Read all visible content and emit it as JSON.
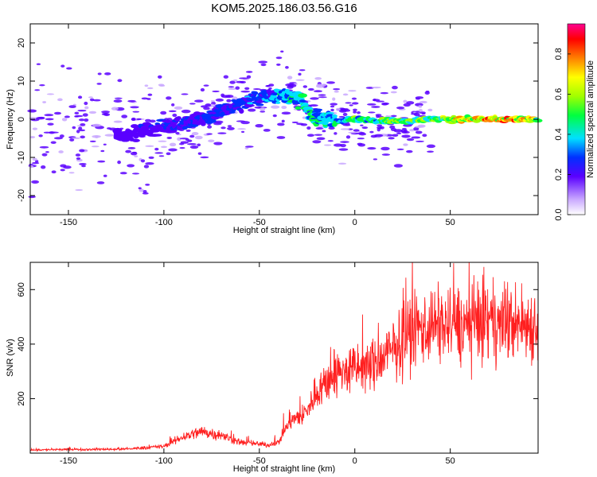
{
  "title": "KOM5.2025.186.03.56.G16",
  "colors": {
    "snr_line": "#ff2020",
    "frame": "#000000",
    "background": "#ffffff"
  },
  "chart_data": [
    {
      "type": "heatmap",
      "xlabel": "Height of straight line (km)",
      "ylabel": "Frequency (Hz)",
      "xlim": [
        -170,
        96
      ],
      "ylim": [
        -25,
        25
      ],
      "xticks": [
        -150,
        -100,
        -50,
        0,
        50
      ],
      "yticks": [
        -20,
        -10,
        0,
        10,
        20
      ],
      "colorbar": {
        "label": "Normalized spectral amplitude",
        "range": [
          0,
          0.95
        ],
        "ticks": [
          "0.0",
          "0.2",
          "0.4",
          "0.6",
          "0.8"
        ]
      },
      "ridge": {
        "x": [
          -120,
          -100,
          -80,
          -60,
          -45,
          -38,
          -30,
          -20,
          -10,
          0,
          20,
          40,
          60,
          80,
          96
        ],
        "frequency": [
          -4,
          -2,
          0,
          4,
          6,
          6.5,
          5,
          0.5,
          -0.5,
          0,
          -0.5,
          0,
          0,
          0,
          0
        ],
        "amplitude": [
          0.15,
          0.2,
          0.22,
          0.25,
          0.3,
          0.35,
          0.4,
          0.4,
          0.35,
          0.45,
          0.5,
          0.55,
          0.7,
          0.75,
          0.6
        ]
      }
    },
    {
      "type": "line",
      "xlabel": "Height of straight line (km)",
      "ylabel": "SNR (v/v)",
      "xlim": [
        -170,
        96
      ],
      "ylim": [
        0,
        700
      ],
      "xticks": [
        -150,
        -100,
        -50,
        0,
        50
      ],
      "yticks": [
        200,
        400,
        600
      ],
      "envelope": {
        "x": [
          -170,
          -120,
          -100,
          -90,
          -80,
          -70,
          -60,
          -45,
          -40,
          -35,
          -25,
          -20,
          -10,
          0,
          10,
          20,
          30,
          40,
          50,
          60,
          70,
          80,
          96
        ],
        "snr": [
          12,
          15,
          25,
          60,
          80,
          65,
          40,
          30,
          40,
          110,
          150,
          230,
          290,
          310,
          320,
          380,
          450,
          470,
          470,
          470,
          480,
          480,
          470
        ]
      }
    }
  ]
}
